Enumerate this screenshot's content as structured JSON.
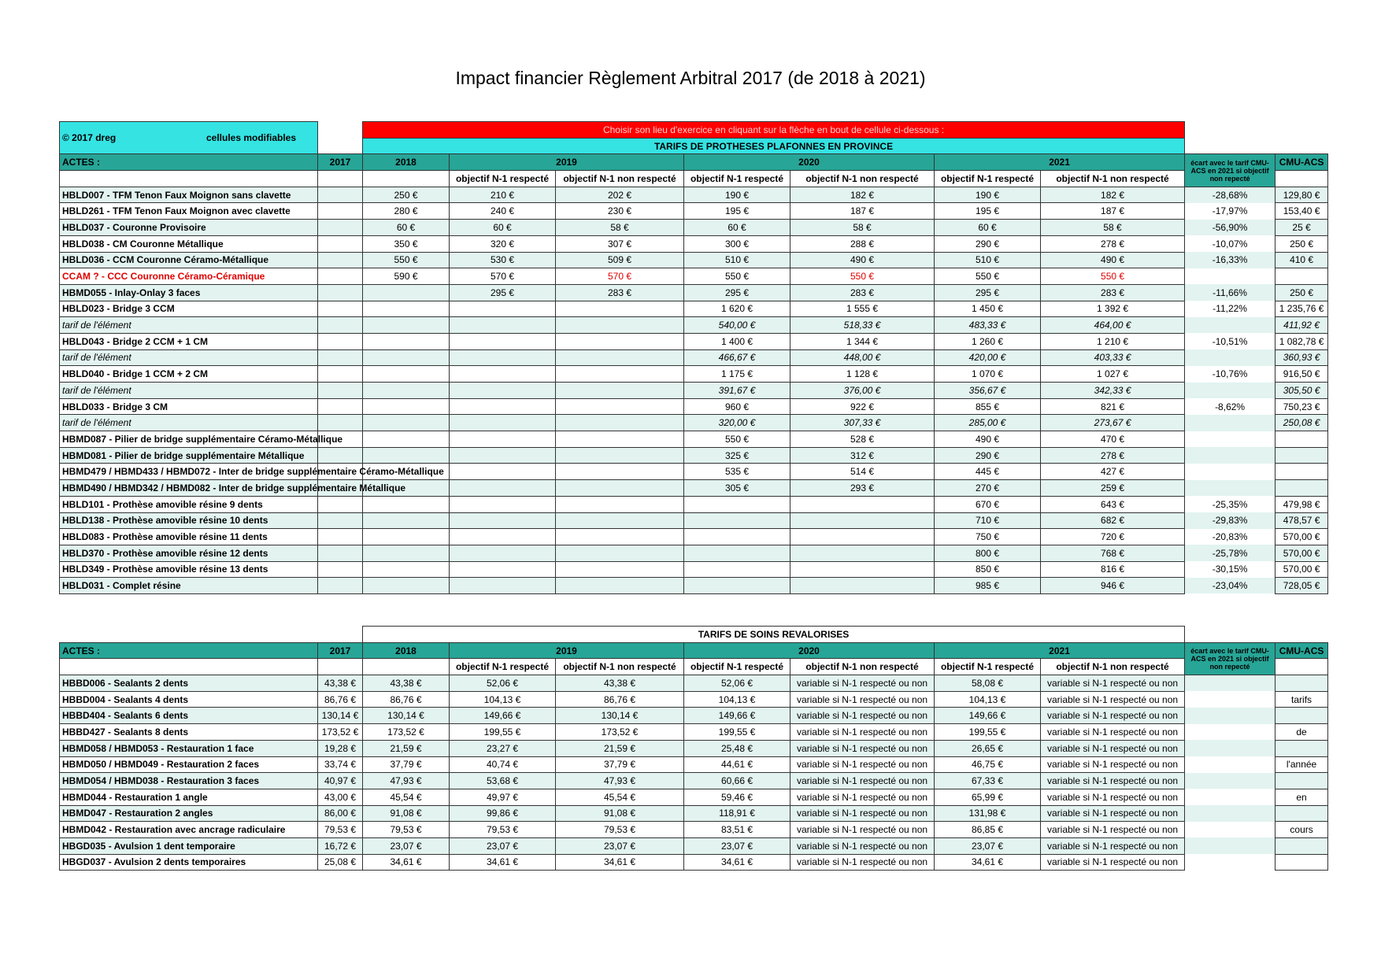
{
  "title": "Impact financier Règlement Arbitral 2017 (de 2018 à 2021)",
  "table1": {
    "note": "© 2017 dreg",
    "editable": "cellules modifiables",
    "instruction": "Choisir son lieu d'exercice en cliquant sur la flèche en bout de cellule ci-dessous :",
    "banner": "TARIFS DE PROTHESES PLAFONNES EN PROVINCE",
    "headers": {
      "actes": "ACTES :",
      "years": [
        "2017",
        "2018",
        "2019",
        "2020",
        "2021"
      ],
      "ecart": "écart avec le tarif CMU-ACS en 2021 si objectif non repecté",
      "cmu": "CMU-ACS"
    },
    "subheaders": [
      "objectif N-1 respecté",
      "objectif N-1 non respecté",
      "objectif N-1 respecté",
      "objectif N-1 non respecté",
      "objectif N-1 respecté",
      "objectif N-1 non respecté"
    ],
    "rows": [
      {
        "cells": [
          "HBLD007 - TFM Tenon Faux Moignon sans clavette",
          null,
          "250 €",
          "210 €",
          "202 €",
          "190 €",
          "182 €",
          "190 €",
          "182 €",
          "-28,68%",
          "129,80 €"
        ]
      },
      {
        "cells": [
          "HBLD261 - TFM Tenon Faux Moignon avec clavette",
          null,
          "280 €",
          "240 €",
          "230 €",
          "195 €",
          "187 €",
          "195 €",
          "187 €",
          "-17,97%",
          "153,40 €"
        ]
      },
      {
        "cells": [
          "HBLD037 - Couronne Provisoire",
          null,
          "60 €",
          "60 €",
          "58 €",
          "60 €",
          "58 €",
          "60 €",
          "58 €",
          "-56,90%",
          "25 €"
        ]
      },
      {
        "cells": [
          "HBLD038 - CM Couronne Métallique",
          null,
          "350 €",
          "320 €",
          "307 €",
          "300 €",
          "288 €",
          "290 €",
          "278 €",
          "-10,07%",
          "250 €"
        ]
      },
      {
        "cells": [
          "HBLD036 - CCM Couronne Céramo-Métallique",
          null,
          "550 €",
          "530 €",
          "509 €",
          "510 €",
          "490 €",
          "510 €",
          "490 €",
          "-16,33%",
          "410 €"
        ]
      },
      {
        "cells": [
          "CCAM ? - CCC Couronne Céramo-Céramique",
          null,
          "590 €",
          "570 €",
          "570 €",
          "550 €",
          "550 €",
          "550 €",
          "550 €",
          null,
          null
        ],
        "red_columns": [
          0,
          4,
          6,
          8
        ]
      },
      {
        "cells": [
          "HBMD055 - Inlay-Onlay 3 faces",
          null,
          null,
          "295 €",
          "283 €",
          "295 €",
          "283 €",
          "295 €",
          "283 €",
          "-11,66%",
          "250 €"
        ]
      },
      {
        "cells": [
          "HBLD023 - Bridge 3 CCM",
          null,
          null,
          null,
          null,
          "1 620 €",
          "1 555 €",
          "1 450 €",
          "1 392 €",
          "-11,22%",
          "1 235,76 €"
        ]
      },
      {
        "cells": [
          "tarif de l'élément",
          null,
          null,
          null,
          null,
          "540,00 €",
          "518,33 €",
          "483,33 €",
          "464,00 €",
          null,
          "411,92 €"
        ],
        "style": "italic"
      },
      {
        "cells": [
          "HBLD043 - Bridge 2 CCM + 1 CM",
          null,
          null,
          null,
          null,
          "1 400 €",
          "1 344 €",
          "1 260 €",
          "1 210 €",
          "-10,51%",
          "1 082,78 €"
        ]
      },
      {
        "cells": [
          "tarif de l'élément",
          null,
          null,
          null,
          null,
          "466,67 €",
          "448,00 €",
          "420,00 €",
          "403,33 €",
          null,
          "360,93 €"
        ],
        "style": "italic"
      },
      {
        "cells": [
          "HBLD040 - Bridge 1 CCM + 2 CM",
          null,
          null,
          null,
          null,
          "1 175 €",
          "1 128 €",
          "1 070 €",
          "1 027 €",
          "-10,76%",
          "916,50 €"
        ]
      },
      {
        "cells": [
          "tarif de l'élément",
          null,
          null,
          null,
          null,
          "391,67 €",
          "376,00 €",
          "356,67 €",
          "342,33 €",
          null,
          "305,50 €"
        ],
        "style": "italic"
      },
      {
        "cells": [
          "HBLD033 - Bridge 3 CM",
          null,
          null,
          null,
          null,
          "960 €",
          "922 €",
          "855 €",
          "821 €",
          "-8,62%",
          "750,23 €"
        ]
      },
      {
        "cells": [
          "tarif de l'élément",
          null,
          null,
          null,
          null,
          "320,00 €",
          "307,33 €",
          "285,00 €",
          "273,67 €",
          null,
          "250,08 €"
        ],
        "style": "italic"
      },
      {
        "cells": [
          "HBMD087 - Pilier de bridge supplémentaire Céramo-Métallique",
          null,
          null,
          null,
          null,
          "550 €",
          "528 €",
          "490 €",
          "470 €",
          null,
          null
        ]
      },
      {
        "cells": [
          "HBMD081 - Pilier de bridge supplémentaire Métallique",
          null,
          null,
          null,
          null,
          "325 €",
          "312 €",
          "290 €",
          "278 €",
          null,
          null
        ]
      },
      {
        "cells": [
          "HBMD479 / HBMD433 / HBMD072 - Inter de bridge supplémentaire Céramo-Métallique",
          null,
          null,
          null,
          null,
          "535 €",
          "514 €",
          "445 €",
          "427 €",
          null,
          null
        ]
      },
      {
        "cells": [
          "HBMD490 / HBMD342 / HBMD082 - Inter de bridge supplémentaire Métallique",
          null,
          null,
          null,
          null,
          "305 €",
          "293 €",
          "270 €",
          "259 €",
          null,
          null
        ]
      },
      {
        "cells": [
          "HBLD101 - Prothèse amovible résine 9 dents",
          null,
          null,
          null,
          null,
          null,
          null,
          "670 €",
          "643 €",
          "-25,35%",
          "479,98 €"
        ]
      },
      {
        "cells": [
          "HBLD138 - Prothèse amovible résine 10 dents",
          null,
          null,
          null,
          null,
          null,
          null,
          "710 €",
          "682 €",
          "-29,83%",
          "478,57 €"
        ]
      },
      {
        "cells": [
          "HBLD083 - Prothèse amovible résine 11 dents",
          null,
          null,
          null,
          null,
          null,
          null,
          "750 €",
          "720 €",
          "-20,83%",
          "570,00 €"
        ]
      },
      {
        "cells": [
          "HBLD370 - Prothèse amovible résine 12 dents",
          null,
          null,
          null,
          null,
          null,
          null,
          "800 €",
          "768 €",
          "-25,78%",
          "570,00 €"
        ]
      },
      {
        "cells": [
          "HBLD349 - Prothèse amovible résine 13 dents",
          null,
          null,
          null,
          null,
          null,
          null,
          "850 €",
          "816 €",
          "-30,15%",
          "570,00 €"
        ]
      },
      {
        "cells": [
          "HBLD031 - Complet résine",
          null,
          null,
          null,
          null,
          null,
          null,
          "985 €",
          "946 €",
          "-23,04%",
          "728,05 €"
        ]
      }
    ]
  },
  "table2": {
    "banner": "TARIFS DE SOINS REVALORISES",
    "headers": {
      "actes": "ACTES :",
      "years": [
        "2017",
        "2018",
        "2019",
        "2020",
        "2021"
      ],
      "ecart": "écart avec le tarif CMU-ACS en 2021 si objectif non repecté",
      "cmu": "CMU-ACS"
    },
    "subheaders": [
      "objectif N-1 respecté",
      "objectif N-1 non respecté",
      "objectif N-1 respecté",
      "objectif N-1 non respecté",
      "objectif N-1 respecté",
      "objectif N-1 non respecté"
    ],
    "rows": [
      {
        "cells": [
          "HBBD006 - Sealants 2 dents",
          "43,38 €",
          "43,38 €",
          "52,06 €",
          "43,38 €",
          "52,06 €",
          "variable si N-1 respecté ou non",
          "58,08 €",
          "variable si N-1 respecté ou non",
          null,
          null
        ]
      },
      {
        "cells": [
          "HBBD004 - Sealants 4 dents",
          "86,76 €",
          "86,76 €",
          "104,13 €",
          "86,76 €",
          "104,13 €",
          "variable si N-1 respecté ou non",
          "104,13 €",
          "variable si N-1 respecté ou non",
          null,
          "tarifs"
        ]
      },
      {
        "cells": [
          "HBBD404 - Sealants 6 dents",
          "130,14 €",
          "130,14 €",
          "149,66 €",
          "130,14 €",
          "149,66 €",
          "variable si N-1 respecté ou non",
          "149,66 €",
          "variable si N-1 respecté ou non",
          null,
          null
        ]
      },
      {
        "cells": [
          "HBBD427 - Sealants 8 dents",
          "173,52 €",
          "173,52 €",
          "199,55 €",
          "173,52 €",
          "199,55 €",
          "variable si N-1 respecté ou non",
          "199,55 €",
          "variable si N-1 respecté ou non",
          null,
          "de"
        ]
      },
      {
        "cells": [
          "HBMD058 / HBMD053 - Restauration 1 face",
          "19,28 €",
          "21,59 €",
          "23,27 €",
          "21,59 €",
          "25,48 €",
          "variable si N-1 respecté ou non",
          "26,65 €",
          "variable si N-1 respecté ou non",
          null,
          null
        ]
      },
      {
        "cells": [
          "HBMD050 / HBMD049 - Restauration 2 faces",
          "33,74 €",
          "37,79 €",
          "40,74 €",
          "37,79 €",
          "44,61 €",
          "variable si N-1 respecté ou non",
          "46,75 €",
          "variable si N-1 respecté ou non",
          null,
          "l'année"
        ]
      },
      {
        "cells": [
          "HBMD054 / HBMD038 - Restauration 3 faces",
          "40,97 €",
          "47,93 €",
          "53,68 €",
          "47,93 €",
          "60,66 €",
          "variable si N-1 respecté ou non",
          "67,33 €",
          "variable si N-1 respecté ou non",
          null,
          null
        ]
      },
      {
        "cells": [
          "HBMD044 - Restauration 1 angle",
          "43,00 €",
          "45,54 €",
          "49,97 €",
          "45,54 €",
          "59,46 €",
          "variable si N-1 respecté ou non",
          "65,99 €",
          "variable si N-1 respecté ou non",
          null,
          "en"
        ]
      },
      {
        "cells": [
          "HBMD047 - Restauration 2 angles",
          "86,00 €",
          "91,08 €",
          "99,86 €",
          "91,08 €",
          "118,91 €",
          "variable si N-1 respecté ou non",
          "131,98 €",
          "variable si N-1 respecté ou non",
          null,
          null
        ]
      },
      {
        "cells": [
          "HBMD042 - Restauration avec ancrage radiculaire",
          "79,53 €",
          "79,53 €",
          "79,53 €",
          "79,53 €",
          "83,51 €",
          "variable si N-1 respecté ou non",
          "86,85 €",
          "variable si N-1 respecté ou non",
          null,
          "cours"
        ]
      },
      {
        "cells": [
          "HBGD035 - Avulsion 1 dent temporaire",
          "16,72 €",
          "23,07 €",
          "23,07 €",
          "23,07 €",
          "23,07 €",
          "variable si N-1 respecté ou non",
          "23,07 €",
          "variable si N-1 respecté ou non",
          null,
          null
        ]
      },
      {
        "cells": [
          "HBGD037 - Avulsion 2 dents temporaires",
          "25,08 €",
          "34,61 €",
          "34,61 €",
          "34,61 €",
          "34,61 €",
          "variable si N-1 respecté ou non",
          "34,61 €",
          "variable si N-1 respecté ou non",
          null,
          null
        ]
      }
    ]
  }
}
